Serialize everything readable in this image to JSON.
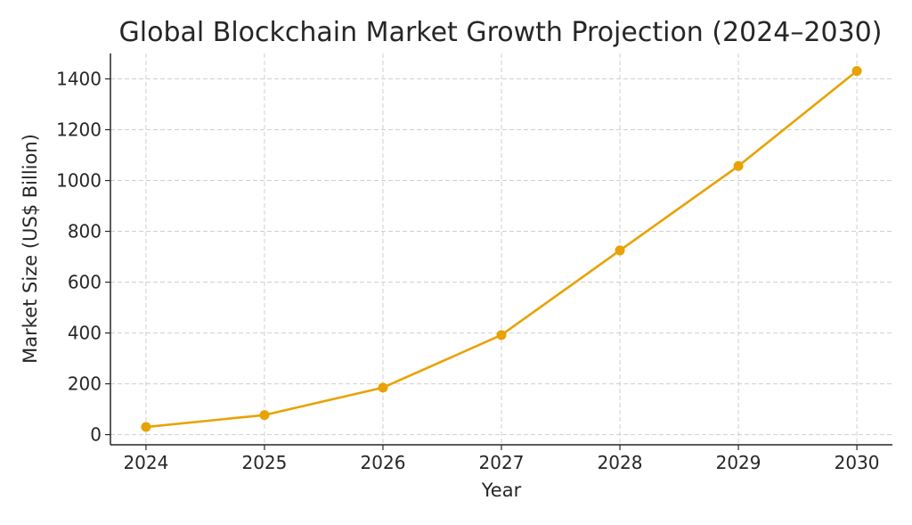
{
  "chart_data": {
    "type": "line",
    "title": "Global Blockchain Market Growth Projection (2024–2030)",
    "xlabel": "Year",
    "ylabel": "Market Size (US$ Billion)",
    "x": [
      2024,
      2025,
      2026,
      2027,
      2028,
      2029,
      2030
    ],
    "x_tick_labels": [
      "2024",
      "2025",
      "2026",
      "2027",
      "2028",
      "2029",
      "2030"
    ],
    "y_ticks": [
      0,
      200,
      400,
      600,
      800,
      1000,
      1200,
      1400
    ],
    "y_tick_labels": [
      "0",
      "200",
      "400",
      "600",
      "800",
      "1000",
      "1200",
      "1400"
    ],
    "series": [
      {
        "name": "Market Size",
        "values": [
          30,
          77,
          185,
          392,
          725,
          1057,
          1431
        ],
        "color": "#E8A202",
        "marker": "circle"
      }
    ],
    "xlim": [
      2023.7,
      2030.3
    ],
    "ylim": [
      -40,
      1500
    ],
    "grid": true,
    "legend": "none"
  }
}
